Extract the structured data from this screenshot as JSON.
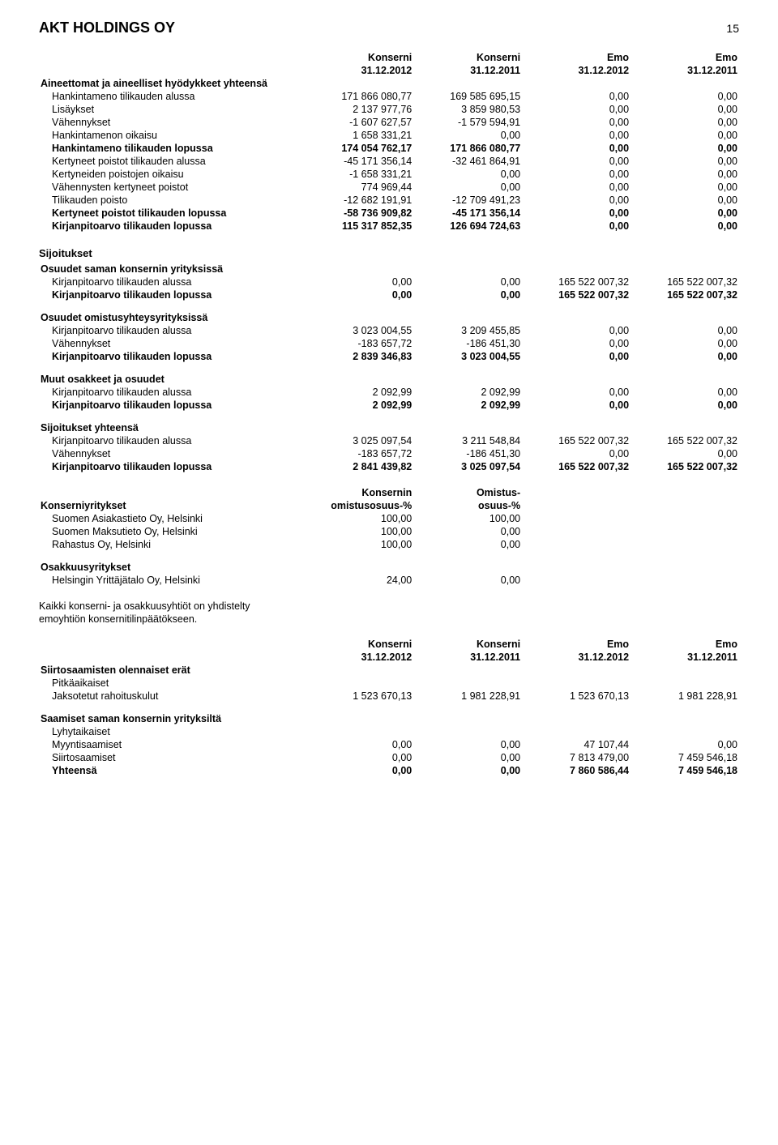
{
  "header": {
    "company": "AKT HOLDINGS OY",
    "page_number": "15"
  },
  "col_headers": {
    "c1_top": "Konserni",
    "c1_bot": "31.12.2012",
    "c2_top": "Konserni",
    "c2_bot": "31.12.2011",
    "c3_top": "Emo",
    "c3_bot": "31.12.2012",
    "c4_top": "Emo",
    "c4_bot": "31.12.2011"
  },
  "table1": {
    "title": "Aineettomat ja aineelliset hyödykkeet yhteensä",
    "rows": [
      {
        "label": "Hankintameno tilikauden alussa",
        "v": [
          "171 866 080,77",
          "169 585 695,15",
          "0,00",
          "0,00"
        ],
        "bold": false
      },
      {
        "label": "Lisäykset",
        "v": [
          "2 137 977,76",
          "3 859 980,53",
          "0,00",
          "0,00"
        ],
        "bold": false
      },
      {
        "label": "Vähennykset",
        "v": [
          "-1 607 627,57",
          "-1 579 594,91",
          "0,00",
          "0,00"
        ],
        "bold": false
      },
      {
        "label": "Hankintamenon oikaisu",
        "v": [
          "1 658 331,21",
          "0,00",
          "0,00",
          "0,00"
        ],
        "bold": false
      },
      {
        "label": "Hankintameno tilikauden lopussa",
        "v": [
          "174 054 762,17",
          "171 866 080,77",
          "0,00",
          "0,00"
        ],
        "bold": true
      },
      {
        "label": "Kertyneet poistot tilikauden alussa",
        "v": [
          "-45 171 356,14",
          "-32 461 864,91",
          "0,00",
          "0,00"
        ],
        "bold": false
      },
      {
        "label": "Kertyneiden poistojen oikaisu",
        "v": [
          "-1 658 331,21",
          "0,00",
          "0,00",
          "0,00"
        ],
        "bold": false
      },
      {
        "label": "Vähennysten kertyneet poistot",
        "v": [
          "774 969,44",
          "0,00",
          "0,00",
          "0,00"
        ],
        "bold": false
      },
      {
        "label": "Tilikauden poisto",
        "v": [
          "-12 682 191,91",
          "-12 709 491,23",
          "0,00",
          "0,00"
        ],
        "bold": false
      },
      {
        "label": "Kertyneet poistot tilikauden lopussa",
        "v": [
          "-58 736 909,82",
          "-45 171 356,14",
          "0,00",
          "0,00"
        ],
        "bold": true
      },
      {
        "label": "Kirjanpitoarvo tilikauden lopussa",
        "v": [
          "115 317 852,35",
          "126 694 724,63",
          "0,00",
          "0,00"
        ],
        "bold": true
      }
    ]
  },
  "sijoitukset_title": "Sijoitukset",
  "groups": [
    {
      "title": "Osuudet saman konsernin yrityksissä",
      "rows": [
        {
          "label": "Kirjanpitoarvo tilikauden alussa",
          "v": [
            "0,00",
            "0,00",
            "165 522 007,32",
            "165 522 007,32"
          ],
          "bold": false
        },
        {
          "label": "Kirjanpitoarvo tilikauden lopussa",
          "v": [
            "0,00",
            "0,00",
            "165 522 007,32",
            "165 522 007,32"
          ],
          "bold": true
        }
      ]
    },
    {
      "title": "Osuudet omistusyhteysyrityksissä",
      "rows": [
        {
          "label": "Kirjanpitoarvo tilikauden alussa",
          "v": [
            "3 023 004,55",
            "3 209 455,85",
            "0,00",
            "0,00"
          ],
          "bold": false
        },
        {
          "label": "Vähennykset",
          "v": [
            "-183 657,72",
            "-186 451,30",
            "0,00",
            "0,00"
          ],
          "bold": false
        },
        {
          "label": "Kirjanpitoarvo tilikauden lopussa",
          "v": [
            "2 839 346,83",
            "3 023 004,55",
            "0,00",
            "0,00"
          ],
          "bold": true
        }
      ]
    },
    {
      "title": "Muut osakkeet ja osuudet",
      "rows": [
        {
          "label": "Kirjanpitoarvo tilikauden alussa",
          "v": [
            "2 092,99",
            "2 092,99",
            "0,00",
            "0,00"
          ],
          "bold": false
        },
        {
          "label": "Kirjanpitoarvo tilikauden lopussa",
          "v": [
            "2 092,99",
            "2 092,99",
            "0,00",
            "0,00"
          ],
          "bold": true
        }
      ]
    },
    {
      "title": "Sijoitukset yhteensä",
      "rows": [
        {
          "label": "Kirjanpitoarvo tilikauden alussa",
          "v": [
            "3 025 097,54",
            "3 211 548,84",
            "165 522 007,32",
            "165 522 007,32"
          ],
          "bold": false
        },
        {
          "label": "Vähennykset",
          "v": [
            "-183 657,72",
            "-186 451,30",
            "0,00",
            "0,00"
          ],
          "bold": false
        },
        {
          "label": "Kirjanpitoarvo tilikauden lopussa",
          "v": [
            "2 841 439,82",
            "3 025 097,54",
            "165 522 007,32",
            "165 522 007,32"
          ],
          "bold": true
        }
      ]
    }
  ],
  "ownership": {
    "col1_top": "Konsernin",
    "col1_bot": "omistusosuus-%",
    "col2_top": "Omistus-",
    "col2_bot": "osuus-%",
    "group_title": "Konserniyritykset",
    "rows": [
      {
        "label": "Suomen Asiakastieto Oy, Helsinki",
        "v": [
          "100,00",
          "100,00"
        ]
      },
      {
        "label": "Suomen Maksutieto Oy, Helsinki",
        "v": [
          "100,00",
          "0,00"
        ]
      },
      {
        "label": "Rahastus Oy, Helsinki",
        "v": [
          "100,00",
          "0,00"
        ]
      }
    ],
    "assoc_title": "Osakkuusyritykset",
    "assoc_rows": [
      {
        "label": "Helsingin Yrittäjätalo Oy, Helsinki",
        "v": [
          "24,00",
          "0,00"
        ]
      }
    ]
  },
  "note_paragraph_line1": "Kaikki konserni- ja osakkuusyhtiöt on yhdistelty",
  "note_paragraph_line2": "emoyhtiön konsernitilinpäätökseen.",
  "siirto": {
    "title": "Siirtosaamisten olennaiset erät",
    "sub": "Pitkäaikaiset",
    "row": {
      "label": "Jaksotetut rahoituskulut",
      "v": [
        "1 523 670,13",
        "1 981 228,91",
        "1 523 670,13",
        "1 981 228,91"
      ]
    }
  },
  "saamiset": {
    "title": "Saamiset saman konsernin yrityksiltä",
    "sub": "Lyhytaikaiset",
    "rows": [
      {
        "label": "Myyntisaamiset",
        "v": [
          "0,00",
          "0,00",
          "47 107,44",
          "0,00"
        ],
        "bold": false
      },
      {
        "label": "Siirtosaamiset",
        "v": [
          "0,00",
          "0,00",
          "7 813 479,00",
          "7 459 546,18"
        ],
        "bold": false
      },
      {
        "label": "Yhteensä",
        "v": [
          "0,00",
          "0,00",
          "7 860 586,44",
          "7 459 546,18"
        ],
        "bold": true
      }
    ]
  }
}
